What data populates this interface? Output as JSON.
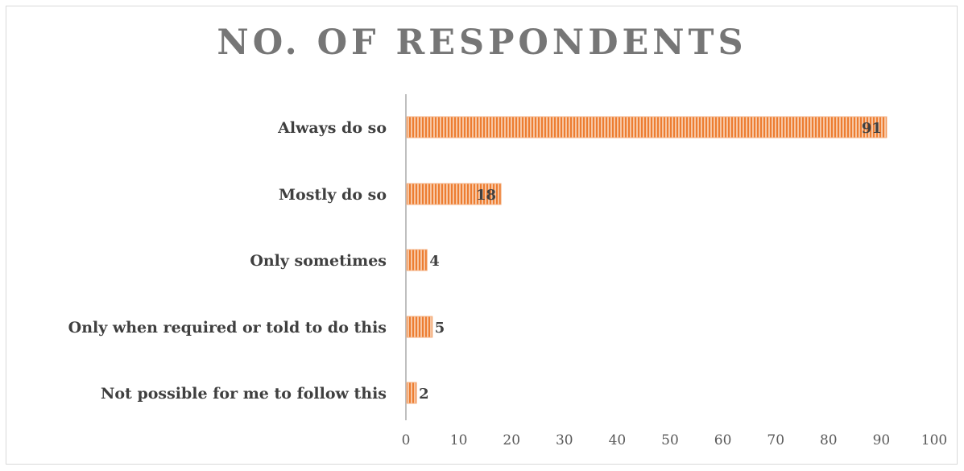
{
  "chart_data": {
    "type": "bar",
    "orientation": "horizontal",
    "title": "NO. OF RESPONDENTS",
    "categories": [
      "Always do so",
      "Mostly do so",
      "Only sometimes",
      "Only when required or told to do this",
      "Not possible for me to follow this"
    ],
    "values": [
      91,
      18,
      4,
      5,
      2
    ],
    "xlim": [
      0,
      100
    ],
    "xticks": [
      "0",
      "10",
      "20",
      "30",
      "40",
      "50",
      "60",
      "70",
      "80",
      "90",
      "100"
    ],
    "data_labels": [
      "91",
      "18",
      "4",
      "5",
      "2"
    ],
    "grid": false,
    "legend": "none",
    "colors": {
      "bar_fill": "#f4b183",
      "bar_stripe": "#ed7d31",
      "axis": "#bfbfbf",
      "title": "#767676"
    }
  }
}
